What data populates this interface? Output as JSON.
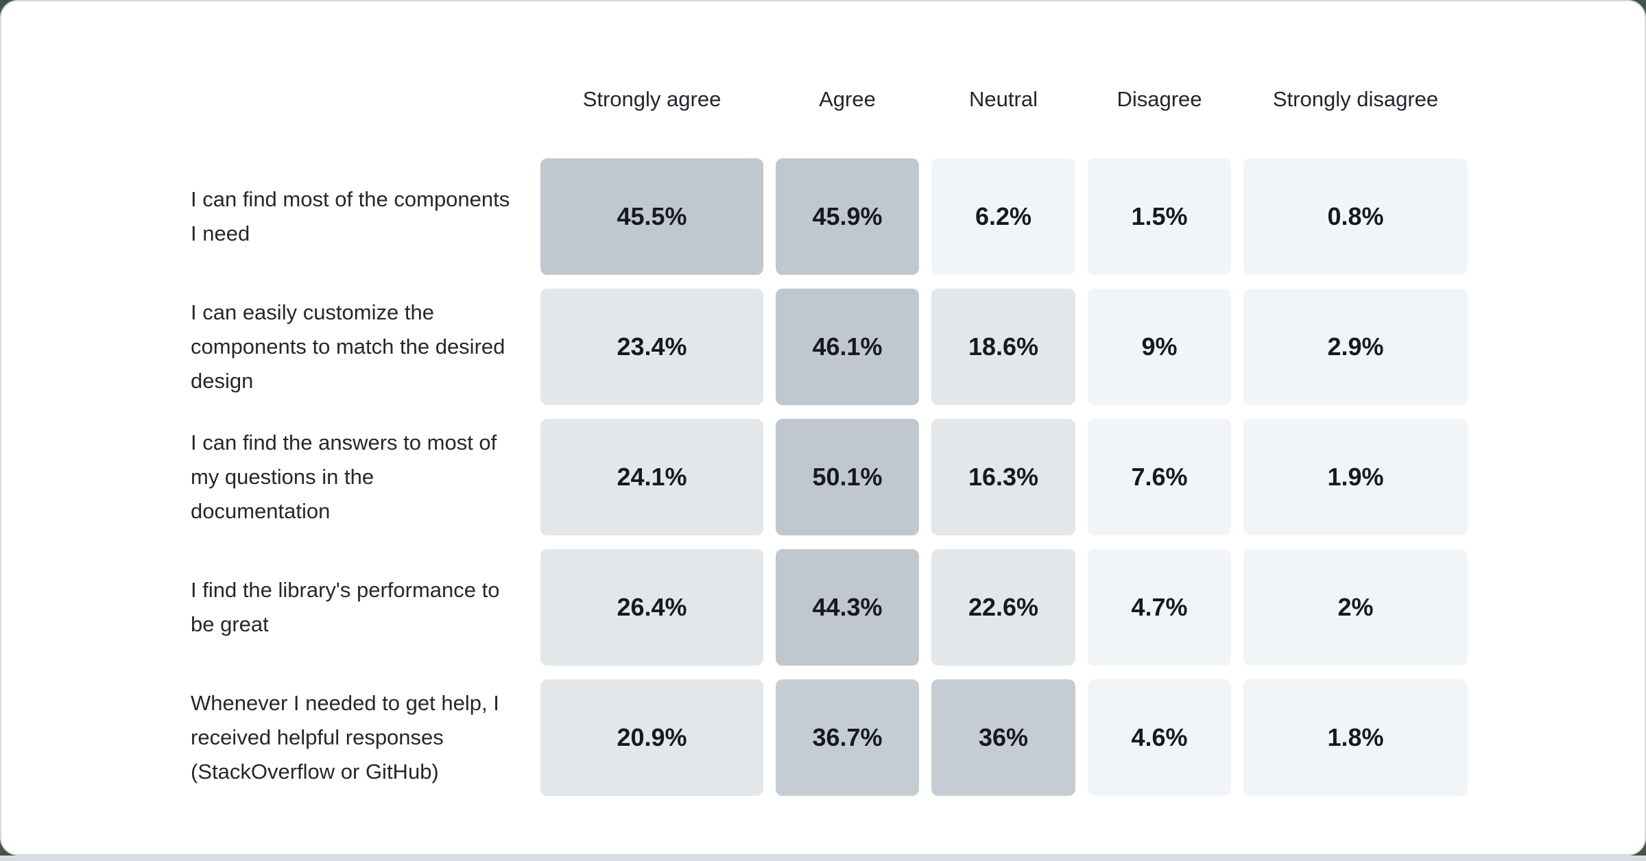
{
  "page": {
    "background_color": "#405448",
    "card_background": "#ffffff",
    "card_border_color": "#d6dade",
    "bottom_strip_color": "#d9dde2"
  },
  "chart_data": {
    "type": "heatmap",
    "title": "",
    "columns": [
      "Strongly agree",
      "Agree",
      "Neutral",
      "Disagree",
      "Strongly disagree"
    ],
    "rows": [
      {
        "label": "I can find most of the components I need",
        "values": [
          45.5,
          45.9,
          6.2,
          1.5,
          0.8
        ],
        "display": [
          "45.5%",
          "45.9%",
          "6.2%",
          "1.5%",
          "0.8%"
        ]
      },
      {
        "label": "I can easily customize the components to match the desired design",
        "values": [
          23.4,
          46.1,
          18.6,
          9,
          2.9
        ],
        "display": [
          "23.4%",
          "46.1%",
          "18.6%",
          "9%",
          "2.9%"
        ]
      },
      {
        "label": "I can find the answers to most of my questions in the documentation",
        "values": [
          24.1,
          50.1,
          16.3,
          7.6,
          1.9
        ],
        "display": [
          "24.1%",
          "50.1%",
          "16.3%",
          "7.6%",
          "1.9%"
        ]
      },
      {
        "label": "I find the library's performance to be great",
        "values": [
          26.4,
          44.3,
          22.6,
          4.7,
          2
        ],
        "display": [
          "26.4%",
          "44.3%",
          "22.6%",
          "4.7%",
          "2%"
        ]
      },
      {
        "label": "Whenever I needed to get help, I received helpful responses (StackOverflow or GitHub)",
        "values": [
          20.9,
          36.7,
          36,
          4.6,
          1.8
        ],
        "display": [
          "20.9%",
          "36.7%",
          "36%",
          "4.6%",
          "1.8%"
        ]
      }
    ],
    "color_scale": [
      {
        "min": 40,
        "color": "#c0c7ce"
      },
      {
        "min": 30,
        "color": "#c5ccd3"
      },
      {
        "min": 15,
        "color": "#e3e7ea"
      },
      {
        "min": 0,
        "color": "#f2f5f8"
      }
    ],
    "header_text_color": "#21262c",
    "label_text_color": "#23282d",
    "value_text_color": "#161a1e",
    "legend_position": "none",
    "grid": "off"
  }
}
